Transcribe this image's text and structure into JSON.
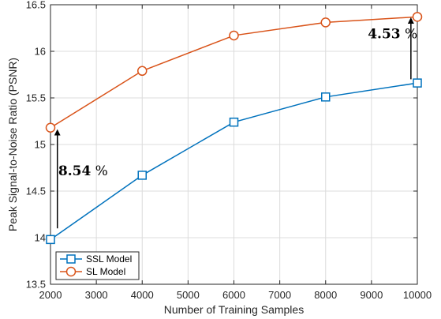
{
  "chart_data": {
    "type": "line",
    "title": "",
    "xlabel": "Number of Training Samples",
    "ylabel": "Peak Signal-to-Noise Ratio (PSNR)",
    "xlim": [
      2000,
      10000
    ],
    "ylim": [
      13.5,
      16.5
    ],
    "x_ticks": [
      2000,
      3000,
      4000,
      5000,
      6000,
      7000,
      8000,
      9000,
      10000
    ],
    "x_tick_labels": [
      "2000",
      "3000",
      "4000",
      "5000",
      "6000",
      "7000",
      "8000",
      "9000",
      "10000"
    ],
    "y_ticks": [
      13.5,
      14,
      14.5,
      15,
      15.5,
      16,
      16.5
    ],
    "y_tick_labels": [
      "13.5",
      "14",
      "14.5",
      "15",
      "15.5",
      "16",
      "16.5"
    ],
    "grid": true,
    "legend_position": "bottom-left",
    "x": [
      2000,
      4000,
      6000,
      8000,
      10000
    ],
    "series": [
      {
        "name": "SSL Model",
        "values": [
          13.98,
          14.67,
          15.24,
          15.51,
          15.66
        ],
        "color": "#0072BD",
        "marker": "square"
      },
      {
        "name": "SL Model",
        "values": [
          15.18,
          15.79,
          16.17,
          16.31,
          16.37
        ],
        "color": "#D95319",
        "marker": "circle"
      }
    ],
    "annotations": [
      {
        "text": "8.54 %",
        "bold_part": "8.54",
        "rest": " %",
        "arrow_x": 2150,
        "arrow_from": 14.1,
        "arrow_to": 15.13,
        "text_x": 2170,
        "text_y": 14.67
      },
      {
        "text": "4.53 %",
        "bold_part": "4.53",
        "rest": " %",
        "arrow_x": 9860,
        "arrow_from": 15.7,
        "arrow_to": 16.33,
        "text_x": 8920,
        "text_y": 16.14
      }
    ]
  }
}
